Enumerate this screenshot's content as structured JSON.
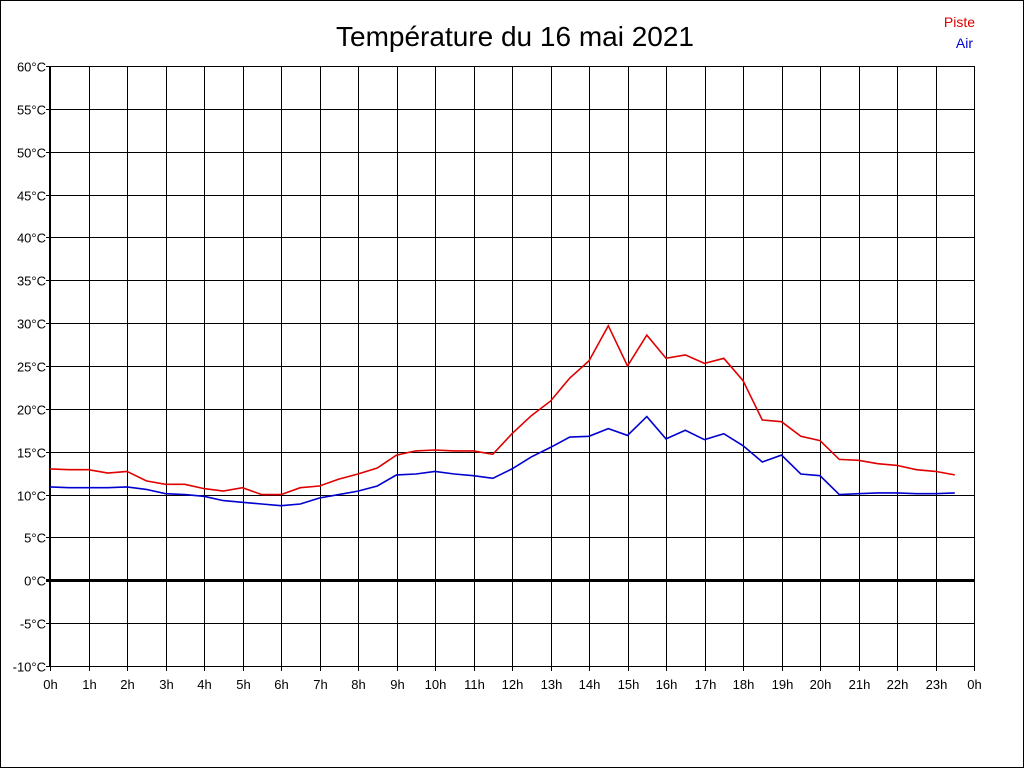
{
  "chart_data": {
    "type": "line",
    "title": "Température du 16 mai 2021",
    "xlabel": "",
    "ylabel": "",
    "ylim": [
      -10,
      60
    ],
    "xlim": [
      0,
      24
    ],
    "grid": true,
    "legend_position": "top-right",
    "x_ticks": [
      "0h",
      "1h",
      "2h",
      "3h",
      "4h",
      "5h",
      "6h",
      "7h",
      "8h",
      "9h",
      "10h",
      "11h",
      "12h",
      "13h",
      "14h",
      "15h",
      "16h",
      "17h",
      "18h",
      "19h",
      "20h",
      "21h",
      "22h",
      "23h",
      "0h"
    ],
    "y_ticks": [
      "-10°C",
      "-5°C",
      "0°C",
      "5°C",
      "10°C",
      "15°C",
      "20°C",
      "25°C",
      "30°C",
      "35°C",
      "40°C",
      "45°C",
      "50°C",
      "55°C",
      "60°C"
    ],
    "x": [
      0,
      0.5,
      1,
      1.5,
      2,
      2.5,
      3,
      3.5,
      4,
      4.5,
      5,
      5.5,
      6,
      6.5,
      7,
      7.5,
      8,
      8.5,
      9,
      9.5,
      10,
      10.5,
      11,
      11.5,
      12,
      12.5,
      13,
      13.5,
      14,
      14.5,
      15,
      15.5,
      16,
      16.5,
      17,
      17.5,
      18,
      18.5,
      19,
      19.5,
      20,
      20.5,
      21,
      21.5,
      22,
      22.5,
      23,
      23.5
    ],
    "series": [
      {
        "name": "Piste",
        "color": "#e00000",
        "values": [
          13.0,
          12.9,
          12.9,
          12.5,
          12.7,
          11.6,
          11.2,
          11.2,
          10.7,
          10.4,
          10.8,
          10.0,
          10.0,
          10.8,
          11.0,
          11.8,
          12.4,
          13.1,
          14.6,
          15.1,
          15.2,
          15.1,
          15.1,
          14.7,
          17.1,
          19.2,
          20.9,
          23.6,
          25.6,
          29.7,
          25.0,
          28.6,
          25.9,
          26.3,
          25.3,
          25.9,
          23.3,
          18.7,
          18.5,
          16.8,
          16.3,
          14.1,
          14.0,
          13.6,
          13.4,
          12.9,
          12.7,
          12.3
        ]
      },
      {
        "name": "Air",
        "color": "#0000d0",
        "values": [
          10.9,
          10.8,
          10.8,
          10.8,
          10.9,
          10.6,
          10.1,
          10.0,
          9.8,
          9.3,
          9.1,
          8.9,
          8.7,
          8.9,
          9.6,
          10.0,
          10.4,
          11.0,
          12.3,
          12.4,
          12.7,
          12.4,
          12.2,
          11.9,
          13.0,
          14.4,
          15.5,
          16.7,
          16.8,
          17.7,
          16.9,
          19.1,
          16.5,
          17.5,
          16.4,
          17.1,
          15.7,
          13.8,
          14.6,
          12.4,
          12.2,
          10.0,
          10.1,
          10.2,
          10.2,
          10.1,
          10.1,
          10.2
        ]
      }
    ]
  }
}
